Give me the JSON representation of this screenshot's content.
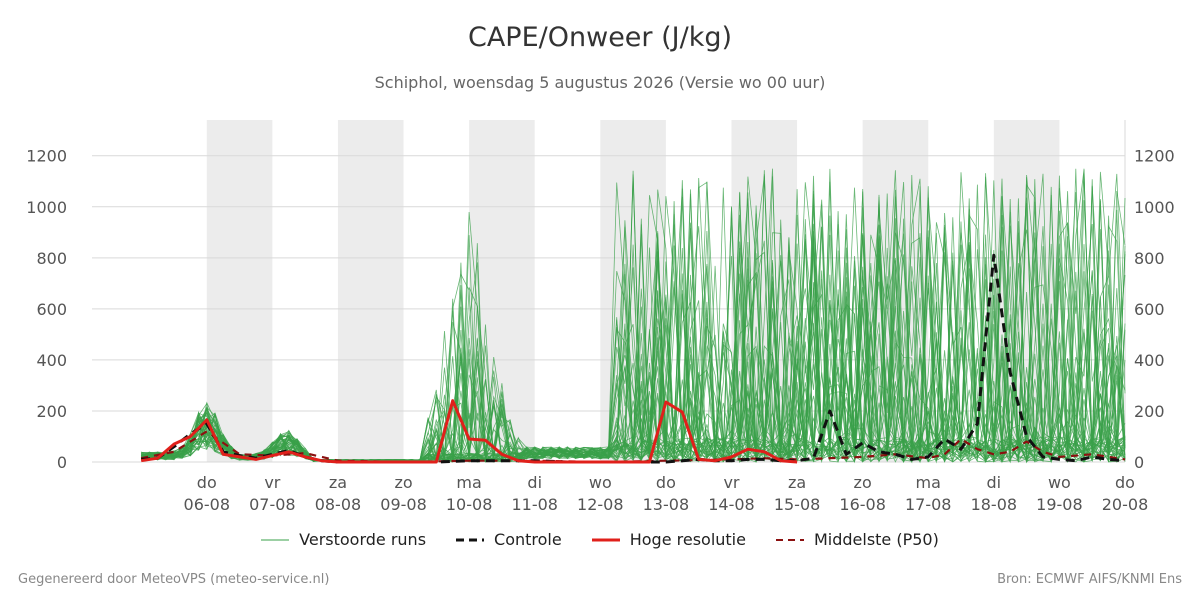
{
  "header": {
    "title": "CAPE/Onweer (J/kg)",
    "subtitle": "Schiphol, woensdag  5 augustus 2026 (Versie wo 00 uur)"
  },
  "legend": [
    {
      "label": "Verstoorde runs",
      "color": "#3aa04a",
      "style": "thin"
    },
    {
      "label": "Controle",
      "color": "#111111",
      "style": "dashed"
    },
    {
      "label": "Hoge resolutie",
      "color": "#e0201b",
      "style": "solid"
    },
    {
      "label": "Middelste (P50)",
      "color": "#8b1010",
      "style": "dashed"
    }
  ],
  "footer": {
    "left": "Gegenereerd door MeteoVPS (meteo-service.nl)",
    "right": "Bron: ECMWF AIFS/KNMI Ens"
  },
  "colors": {
    "ensemble": "#3aa04a",
    "control": "#111111",
    "hires": "#e0201b",
    "median": "#8b1010",
    "weekend_band": "#ececec",
    "grid": "#d9d9d9"
  },
  "chart_data": {
    "type": "line",
    "title": "CAPE/Onweer (J/kg)",
    "x_unit": "days since 2026-08-05 (time axis)",
    "xlim": [
      0,
      15
    ],
    "ylim": [
      0,
      1340
    ],
    "yticks": [
      0,
      200,
      400,
      600,
      800,
      1000,
      1200
    ],
    "grid": "horizontal",
    "x_ticks": [
      {
        "day": "do",
        "date": "06-08",
        "x": 1
      },
      {
        "day": "vr",
        "date": "07-08",
        "x": 2
      },
      {
        "day": "za",
        "date": "08-08",
        "x": 3
      },
      {
        "day": "zo",
        "date": "09-08",
        "x": 4
      },
      {
        "day": "ma",
        "date": "10-08",
        "x": 5
      },
      {
        "day": "di",
        "date": "11-08",
        "x": 6
      },
      {
        "day": "wo",
        "date": "12-08",
        "x": 7
      },
      {
        "day": "do",
        "date": "13-08",
        "x": 8
      },
      {
        "day": "vr",
        "date": "14-08",
        "x": 9
      },
      {
        "day": "za",
        "date": "15-08",
        "x": 10
      },
      {
        "day": "zo",
        "date": "16-08",
        "x": 11
      },
      {
        "day": "ma",
        "date": "17-08",
        "x": 12
      },
      {
        "day": "di",
        "date": "18-08",
        "x": 13
      },
      {
        "day": "wo",
        "date": "19-08",
        "x": 14
      },
      {
        "day": "do",
        "date": "20-08",
        "x": 15
      }
    ],
    "shaded_bands": [
      [
        1,
        2
      ],
      [
        3,
        4
      ],
      [
        5,
        6
      ],
      [
        7,
        8
      ],
      [
        9,
        10
      ],
      [
        11,
        12
      ],
      [
        13,
        14
      ]
    ],
    "ensemble_member_count": 50,
    "series": [
      {
        "name": "Controle",
        "x": [
          0,
          0.25,
          0.5,
          0.75,
          1,
          1.25,
          1.5,
          1.75,
          2,
          2.25,
          2.5,
          2.75,
          3,
          3.5,
          4,
          4.5,
          5,
          5.5,
          6,
          6.5,
          7,
          7.5,
          8,
          8.25,
          8.5,
          8.75,
          9,
          9.25,
          9.5,
          9.75,
          10,
          10.25,
          10.5,
          10.75,
          11,
          11.25,
          11.5,
          11.75,
          12,
          12.25,
          12.5,
          12.75,
          13,
          13.25,
          13.5,
          13.75,
          14,
          14.25,
          14.5,
          14.75,
          15
        ],
        "y": [
          10,
          15,
          60,
          110,
          150,
          40,
          25,
          15,
          30,
          45,
          20,
          5,
          0,
          0,
          0,
          0,
          5,
          5,
          5,
          0,
          0,
          0,
          0,
          5,
          10,
          5,
          5,
          10,
          10,
          5,
          5,
          15,
          200,
          30,
          75,
          40,
          30,
          10,
          20,
          90,
          50,
          150,
          810,
          350,
          100,
          20,
          10,
          5,
          20,
          10,
          5
        ]
      },
      {
        "name": "Hoge resolutie",
        "x": [
          0,
          0.25,
          0.5,
          0.75,
          1,
          1.25,
          1.5,
          1.75,
          2,
          2.25,
          2.5,
          2.75,
          3,
          3.5,
          4,
          4.5,
          4.75,
          5,
          5.25,
          5.5,
          5.75,
          6,
          6.5,
          7,
          7.5,
          7.75,
          8,
          8.25,
          8.5,
          8.75,
          9,
          9.25,
          9.5,
          9.75,
          10
        ],
        "y": [
          5,
          15,
          70,
          100,
          165,
          30,
          20,
          10,
          25,
          40,
          20,
          5,
          0,
          0,
          0,
          0,
          240,
          90,
          85,
          30,
          5,
          0,
          0,
          0,
          0,
          0,
          235,
          195,
          10,
          5,
          20,
          50,
          40,
          5,
          0
        ]
      },
      {
        "name": "Middelste (P50)",
        "x": [
          0,
          0.5,
          1,
          1.5,
          2,
          2.5,
          3,
          4,
          5,
          6,
          7,
          8,
          9,
          9.5,
          10,
          10.5,
          11,
          11.5,
          12,
          12.25,
          12.5,
          12.75,
          13,
          13.25,
          13.5,
          13.75,
          14,
          14.5,
          15
        ],
        "y": [
          15,
          40,
          120,
          30,
          25,
          35,
          5,
          0,
          5,
          5,
          0,
          5,
          10,
          15,
          10,
          15,
          20,
          30,
          15,
          30,
          90,
          50,
          30,
          40,
          80,
          40,
          20,
          30,
          10
        ]
      }
    ]
  }
}
